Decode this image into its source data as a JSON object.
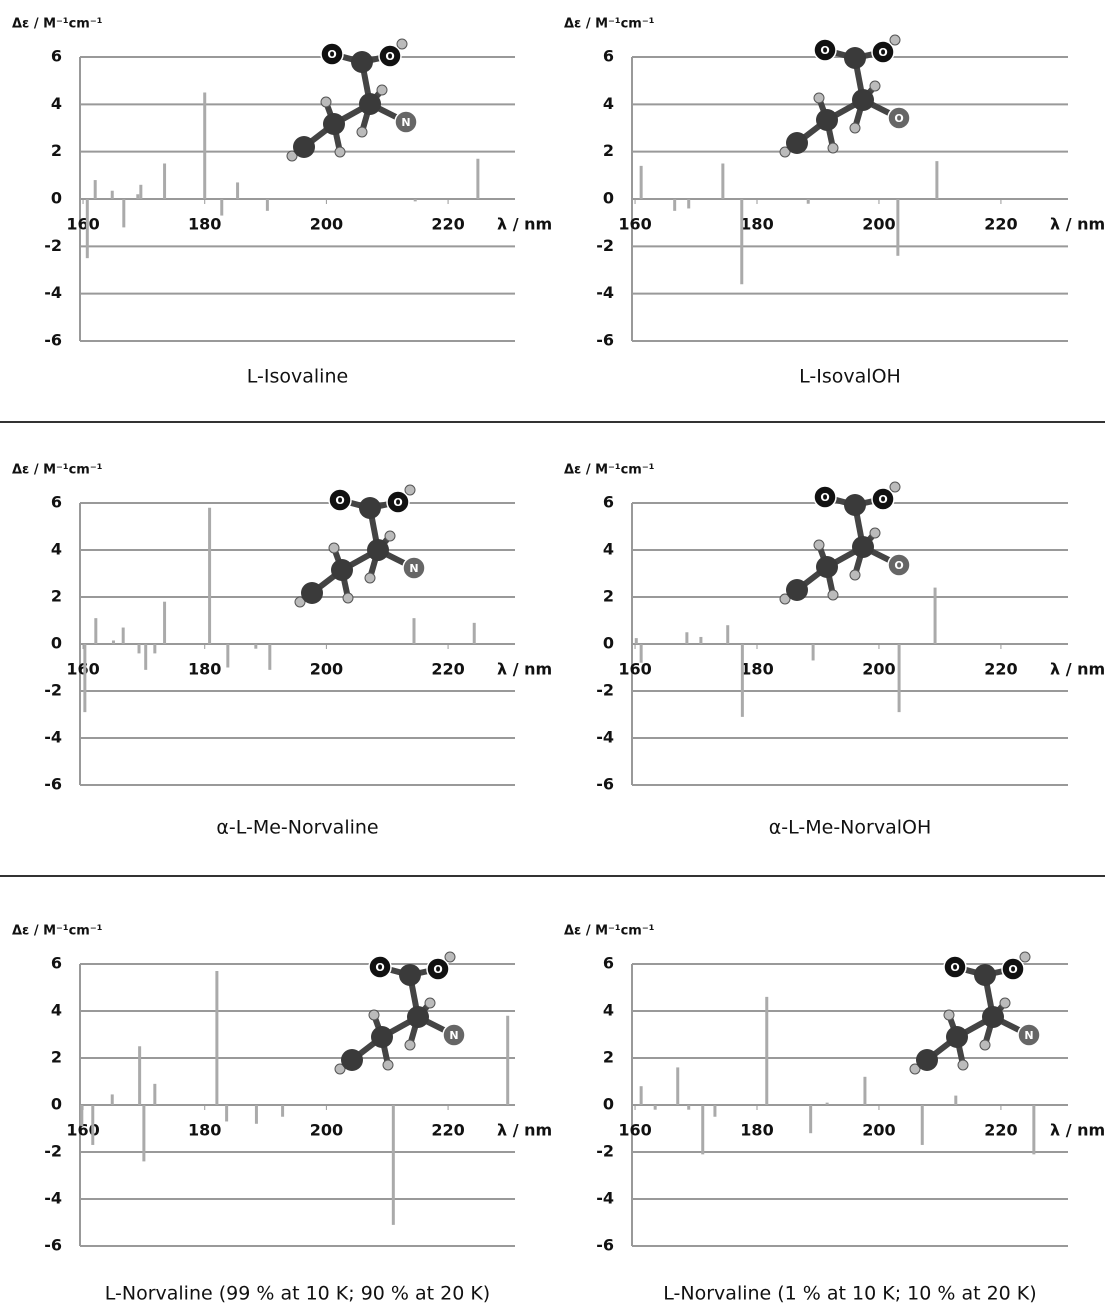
{
  "chart_data": [
    {
      "type": "stick",
      "title": "L-Isovaline",
      "y_label": "Δε / M⁻¹cm⁻¹",
      "x_label": "λ / nm",
      "color": "#aaaaaa",
      "x": [
        160.7,
        162,
        164.8,
        166.7,
        169,
        169.5,
        173.4,
        180,
        182.8,
        185.4,
        190.3,
        214.6,
        224.9
      ],
      "values": [
        -2.5,
        0.8,
        0.35,
        -1.2,
        0.2,
        0.6,
        1.5,
        4.5,
        -0.7,
        0.7,
        -0.5,
        -0.1,
        1.7
      ],
      "xlim": [
        159.5,
        231
      ],
      "xticks": [
        160,
        180,
        200,
        220
      ],
      "ylim": [
        -6,
        6
      ],
      "yticks": [
        -6,
        -4,
        -2,
        0,
        2,
        4,
        6
      ],
      "grid": true,
      "atom_labels": [
        "O",
        "O",
        "N"
      ]
    },
    {
      "type": "stick",
      "title": "L-IsovalOH",
      "y_label": "Δε / M⁻¹cm⁻¹",
      "x_label": "λ / nm",
      "color": "#aaaaaa",
      "x": [
        161,
        166.5,
        168.8,
        174.4,
        177.5,
        188.4,
        203.1,
        209.5
      ],
      "values": [
        1.4,
        -0.5,
        -0.4,
        1.5,
        -3.6,
        -0.2,
        -2.4,
        1.6
      ],
      "xlim": [
        159.5,
        231
      ],
      "xticks": [
        160,
        180,
        200,
        220
      ],
      "ylim": [
        -6,
        6
      ],
      "yticks": [
        -6,
        -4,
        -2,
        0,
        2,
        4,
        6
      ],
      "grid": true,
      "atom_labels": [
        "O",
        "O",
        "O"
      ]
    },
    {
      "type": "stick",
      "title": "α-L-Me-Norvaline",
      "y_label": "Δε / M⁻¹cm⁻¹",
      "x_label": "λ / nm",
      "color": "#aaaaaa",
      "x": [
        160.3,
        162.1,
        165,
        166.6,
        169.2,
        170.3,
        171.8,
        173.4,
        180.8,
        183.8,
        188.4,
        190.7,
        214.4,
        224.3
      ],
      "values": [
        -2.9,
        1.1,
        0.15,
        0.7,
        -0.4,
        -1.1,
        -0.4,
        1.8,
        5.8,
        -1.0,
        -0.2,
        -1.1,
        1.1,
        0.9
      ],
      "xlim": [
        159.5,
        231
      ],
      "xticks": [
        160,
        180,
        200,
        220
      ],
      "ylim": [
        -6,
        6
      ],
      "yticks": [
        -6,
        -4,
        -2,
        0,
        2,
        4,
        6
      ],
      "grid": true,
      "atom_labels": [
        "O",
        "O",
        "N"
      ]
    },
    {
      "type": "stick",
      "title": "α-L-Me-NorvalOH",
      "y_label": "Δε / M⁻¹cm⁻¹",
      "x_label": "λ / nm",
      "color": "#aaaaaa",
      "x": [
        160.2,
        161,
        168.5,
        170.8,
        175.2,
        177.6,
        189.2,
        203.3,
        209.2
      ],
      "values": [
        0.25,
        -0.8,
        0.5,
        0.3,
        0.8,
        -3.1,
        -0.7,
        -2.9,
        2.4
      ],
      "xlim": [
        159.5,
        231
      ],
      "xticks": [
        160,
        180,
        200,
        220
      ],
      "ylim": [
        -6,
        6
      ],
      "yticks": [
        -6,
        -4,
        -2,
        0,
        2,
        4,
        6
      ],
      "grid": true,
      "atom_labels": [
        "O",
        "O",
        "O"
      ]
    },
    {
      "type": "stick",
      "title": "L-Norvaline (99 % at 10 K; 90 % at 20 K)",
      "y_label": "Δε / M⁻¹cm⁻¹",
      "x_label": "λ / nm",
      "color": "#aaaaaa",
      "x": [
        159.8,
        161.6,
        164.8,
        169.3,
        170,
        171.8,
        182,
        183.6,
        188.5,
        192.8,
        211,
        229.8
      ],
      "values": [
        -0.9,
        -1.7,
        0.45,
        2.5,
        -2.4,
        0.9,
        5.7,
        -0.7,
        -0.8,
        -0.5,
        -5.1,
        3.8
      ],
      "xlim": [
        159.5,
        231
      ],
      "xticks": [
        160,
        180,
        200,
        220
      ],
      "ylim": [
        -6,
        6
      ],
      "yticks": [
        -6,
        -4,
        -2,
        0,
        2,
        4,
        6
      ],
      "grid": true,
      "atom_labels": [
        "O",
        "O",
        "N"
      ]
    },
    {
      "type": "stick",
      "title": "L-Norvaline (1 % at 10 K; 10 % at 20 K)",
      "y_label": "Δε / M⁻¹cm⁻¹",
      "x_label": "λ / nm",
      "color": "#aaaaaa",
      "x": [
        161,
        163.3,
        167,
        168.8,
        171.1,
        173.1,
        181.6,
        188.8,
        191.5,
        197.7,
        207.1,
        212.6,
        225.4
      ],
      "values": [
        0.8,
        -0.2,
        1.6,
        -0.2,
        -2.1,
        -0.5,
        4.6,
        -1.2,
        0.1,
        1.2,
        -1.7,
        0.4,
        -2.1
      ],
      "xlim": [
        159.5,
        231
      ],
      "xticks": [
        160,
        180,
        200,
        220
      ],
      "ylim": [
        -6,
        6
      ],
      "yticks": [
        -6,
        -4,
        -2,
        0,
        2,
        4,
        6
      ],
      "grid": true,
      "atom_labels": [
        "O",
        "O",
        "N"
      ]
    }
  ]
}
